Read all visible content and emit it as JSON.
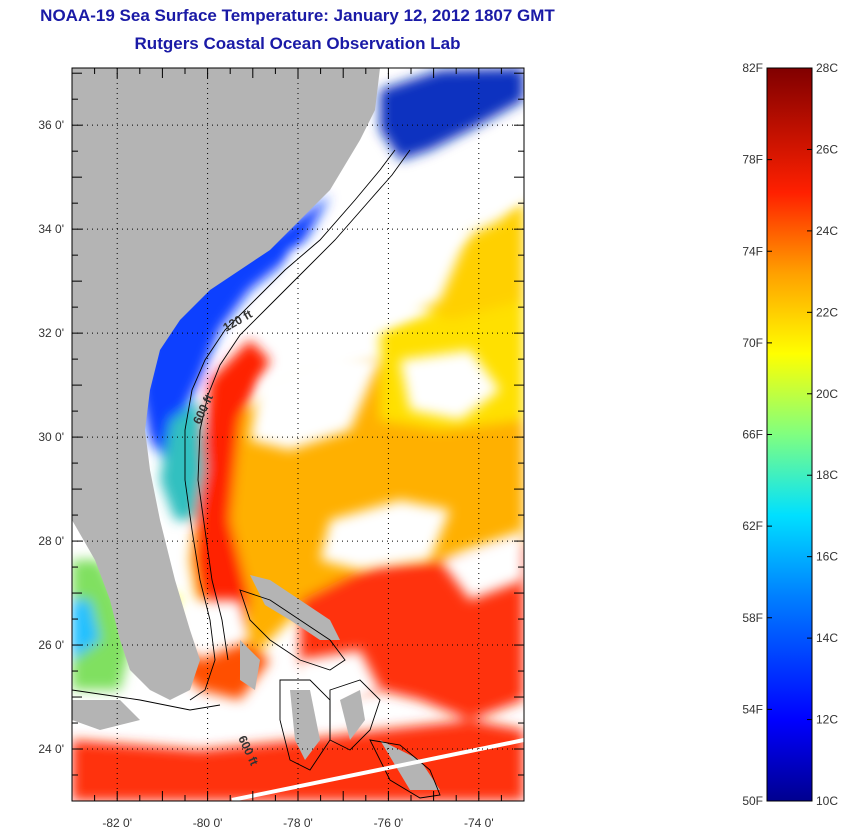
{
  "title": "NOAA-19 Sea Surface Temperature:  January 12, 2012 1807 GMT",
  "subtitle": "Rutgers Coastal Ocean Observation Lab",
  "map": {
    "lat_labels": [
      "36 0'",
      "34 0'",
      "32 0'",
      "30 0'",
      "28 0'",
      "26 0'",
      "24 0'"
    ],
    "lat_values": [
      36,
      34,
      32,
      30,
      28,
      26,
      24
    ],
    "lon_labels": [
      "-82 0'",
      "-80 0'",
      "-78 0'",
      "-76 0'",
      "-74 0'"
    ],
    "lon_values": [
      -82,
      -80,
      -78,
      -76,
      -74
    ],
    "lat_range": [
      23,
      37.1
    ],
    "lon_range": [
      -83,
      -73
    ],
    "contour_labels": [
      "120 ft",
      "600 ft",
      "600 ft"
    ],
    "land_color": "#b4b4b4",
    "cloud_color": "#ffffff"
  },
  "colorbar": {
    "fahrenheit_labels": [
      "82F",
      "78F",
      "74F",
      "70F",
      "66F",
      "62F",
      "58F",
      "54F",
      "50F"
    ],
    "celsius_labels": [
      "28C",
      "26C",
      "24C",
      "22C",
      "20C",
      "18C",
      "16C",
      "14C",
      "12C",
      "10C"
    ],
    "range_c": [
      10,
      28
    ],
    "colors": [
      "#00008f",
      "#0000ff",
      "#0080ff",
      "#00ffff",
      "#80ff80",
      "#ffff00",
      "#ff8000",
      "#ff0000",
      "#800000"
    ]
  }
}
